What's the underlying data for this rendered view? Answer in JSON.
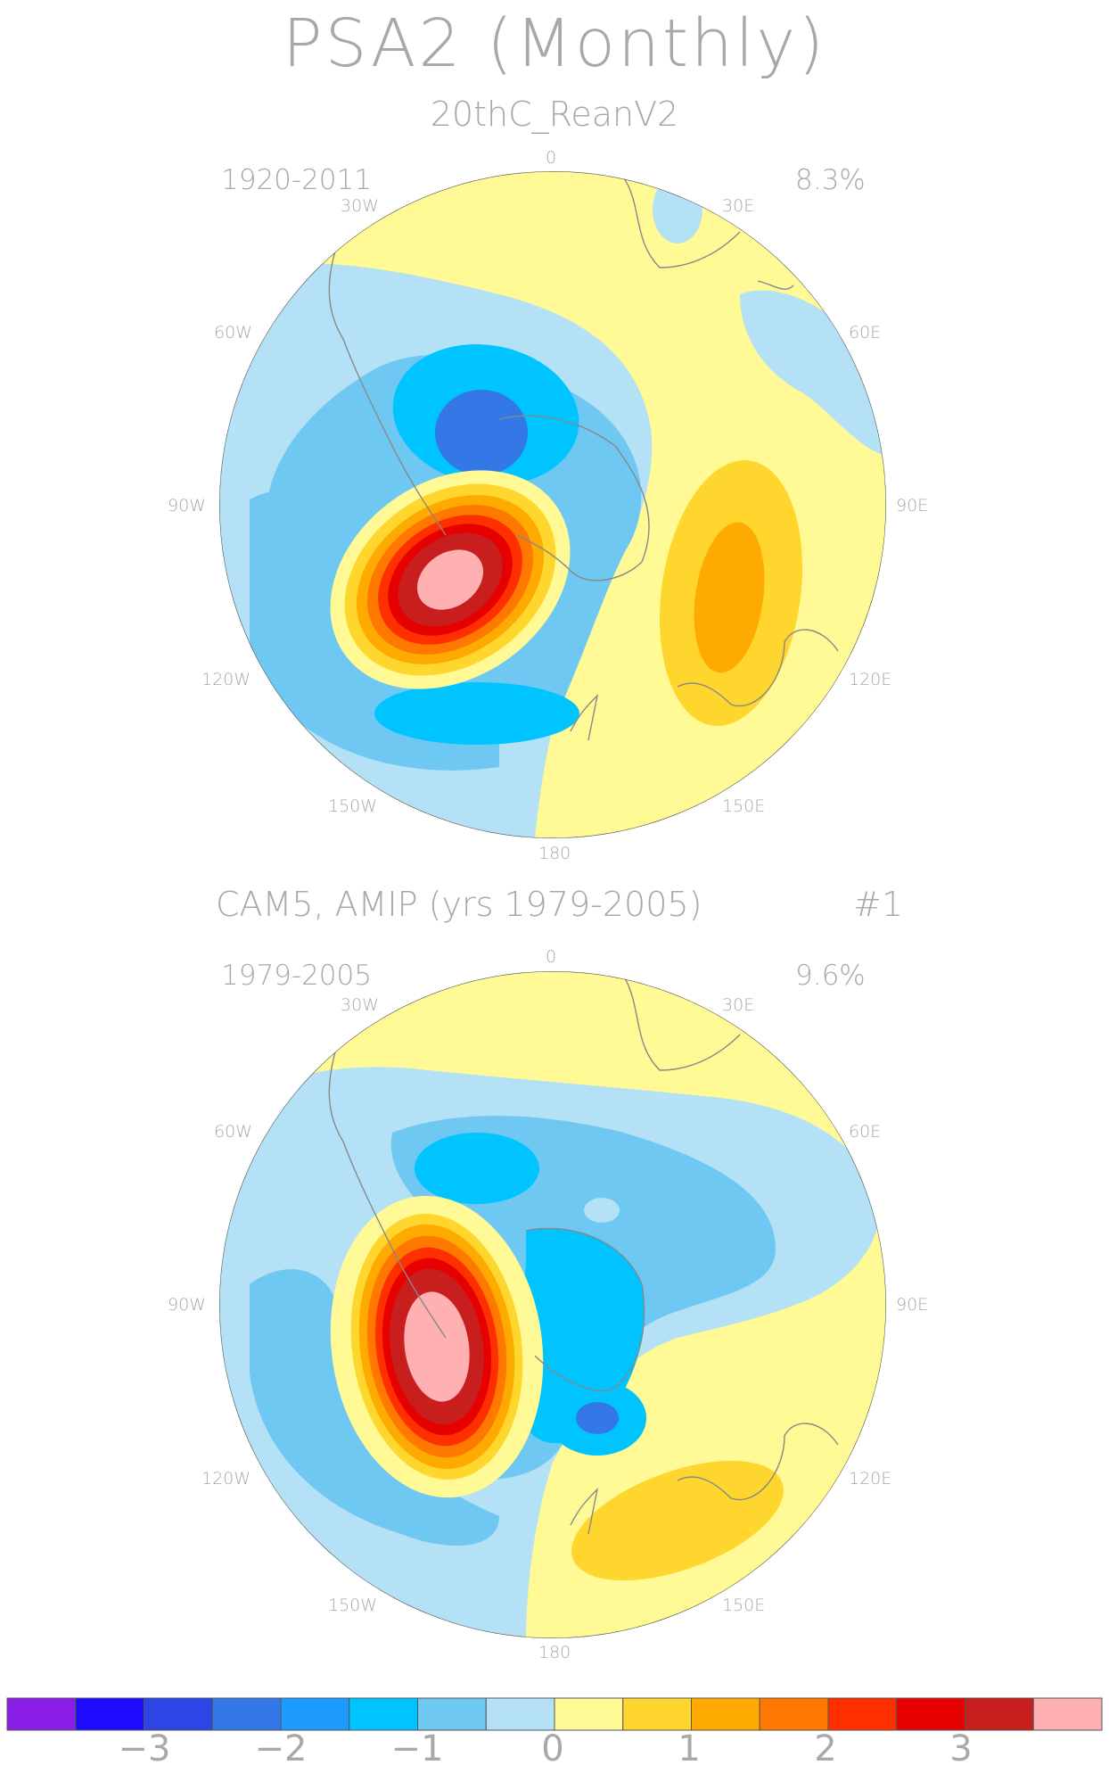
{
  "title": "PSA2 (Monthly)",
  "panels": [
    {
      "subtitle": "20thC_ReanV2",
      "years": "1920-2011",
      "variance": "8.3%",
      "lon_labels": [
        "0",
        "30E",
        "60E",
        "90E",
        "120E",
        "150E",
        "180",
        "150W",
        "120W",
        "90W",
        "60W",
        "30W"
      ]
    },
    {
      "subtitle": "CAM5, AMIP (yrs 1979-2005)",
      "run_id": "#1",
      "years": "1979-2005",
      "variance": "9.6%",
      "lon_labels": [
        "0",
        "30E",
        "60E",
        "90E",
        "120E",
        "150E",
        "180",
        "150W",
        "120W",
        "90W",
        "60W",
        "30W"
      ]
    }
  ],
  "colorbar": {
    "colors": [
      "#8a1ee6",
      "#1e0aff",
      "#2e45e6",
      "#3378e6",
      "#1e9bff",
      "#00c4ff",
      "#6ec8f2",
      "#b4e1f5",
      "#fffa96",
      "#ffd62e",
      "#ffaa00",
      "#ff7800",
      "#ff3000",
      "#e60000",
      "#c81e1e",
      "#ffb0b0"
    ],
    "tick_labels": [
      "−3",
      "−2",
      "−1",
      "0",
      "1",
      "2",
      "3"
    ]
  }
}
